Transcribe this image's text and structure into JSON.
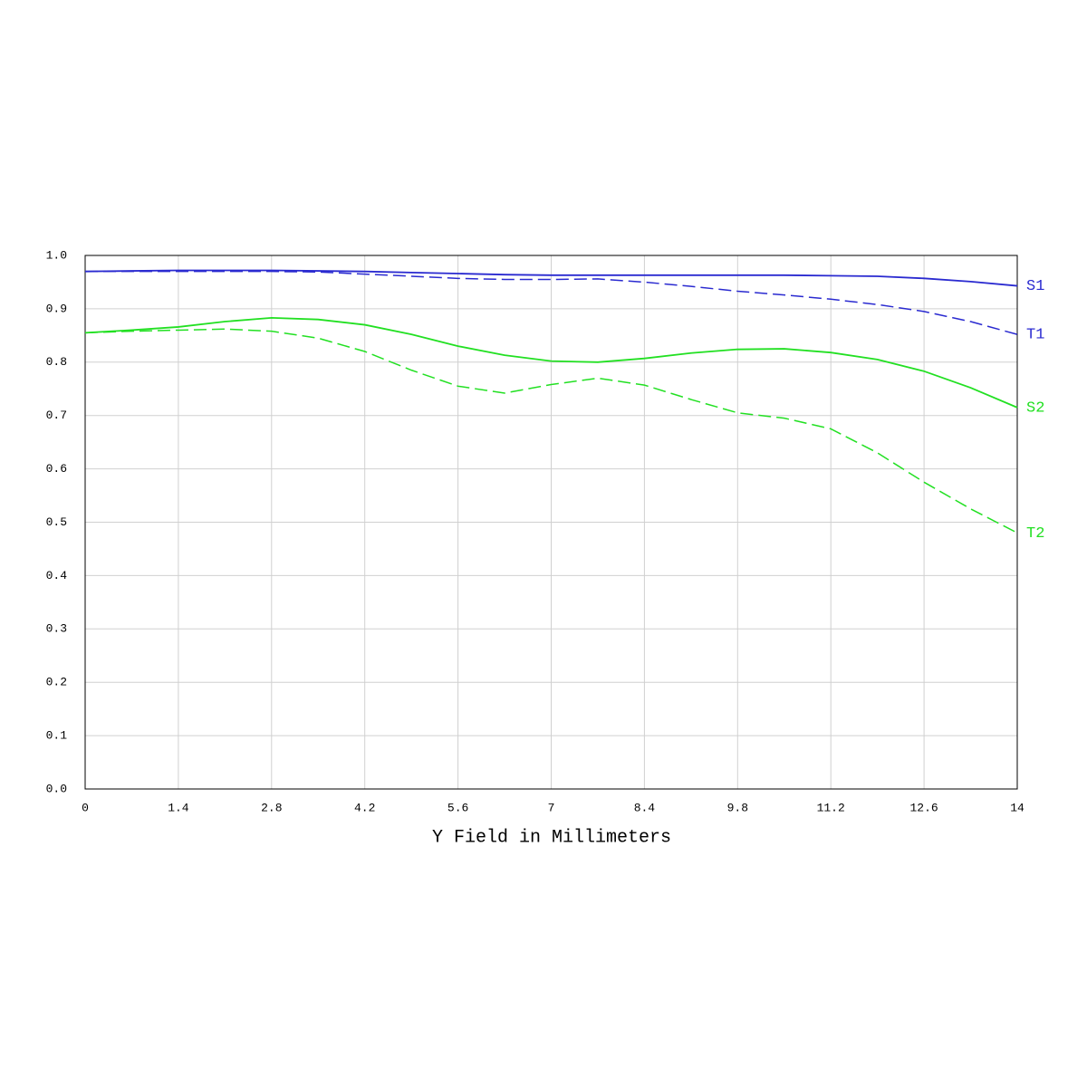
{
  "chart_data": {
    "type": "line",
    "xlabel": "Y Field in Millimeters",
    "x": [
      0,
      0.7,
      1.4,
      2.1,
      2.8,
      3.5,
      4.2,
      4.9,
      5.6,
      6.3,
      7,
      7.7,
      8.4,
      9.1,
      9.8,
      10.5,
      11.2,
      11.9,
      12.6,
      13.3,
      14
    ],
    "series": [
      {
        "name": "S1",
        "color": "#2a2ad0",
        "dashed": false,
        "values": [
          0.97,
          0.971,
          0.972,
          0.972,
          0.972,
          0.971,
          0.97,
          0.968,
          0.966,
          0.964,
          0.963,
          0.963,
          0.963,
          0.963,
          0.963,
          0.963,
          0.962,
          0.961,
          0.957,
          0.951,
          0.943
        ]
      },
      {
        "name": "T1",
        "color": "#2a2ad0",
        "dashed": true,
        "values": [
          0.97,
          0.97,
          0.97,
          0.97,
          0.97,
          0.969,
          0.965,
          0.961,
          0.957,
          0.955,
          0.955,
          0.956,
          0.95,
          0.942,
          0.933,
          0.926,
          0.918,
          0.908,
          0.895,
          0.876,
          0.852
        ]
      },
      {
        "name": "S2",
        "color": "#22e022",
        "dashed": false,
        "values": [
          0.855,
          0.86,
          0.866,
          0.876,
          0.883,
          0.88,
          0.87,
          0.852,
          0.83,
          0.813,
          0.802,
          0.8,
          0.807,
          0.817,
          0.824,
          0.825,
          0.818,
          0.805,
          0.783,
          0.752,
          0.715
        ]
      },
      {
        "name": "T2",
        "color": "#22e022",
        "dashed": true,
        "values": [
          0.855,
          0.858,
          0.86,
          0.862,
          0.858,
          0.845,
          0.82,
          0.785,
          0.755,
          0.742,
          0.758,
          0.77,
          0.757,
          0.73,
          0.705,
          0.695,
          0.675,
          0.63,
          0.575,
          0.525,
          0.48
        ]
      }
    ],
    "xlim": [
      0,
      14
    ],
    "xticks": [
      0,
      1.4,
      2.8,
      4.2,
      5.6,
      7,
      8.4,
      9.8,
      11.2,
      12.6,
      14
    ],
    "ylim": [
      0,
      1
    ],
    "yticks": [
      {
        "value": 0,
        "label": "0.0"
      },
      0.1,
      0.2,
      0.3,
      0.4,
      0.5,
      0.6,
      0.7,
      0.8,
      0.9,
      {
        "value": 1,
        "label": "1.0"
      }
    ],
    "grid": true
  }
}
